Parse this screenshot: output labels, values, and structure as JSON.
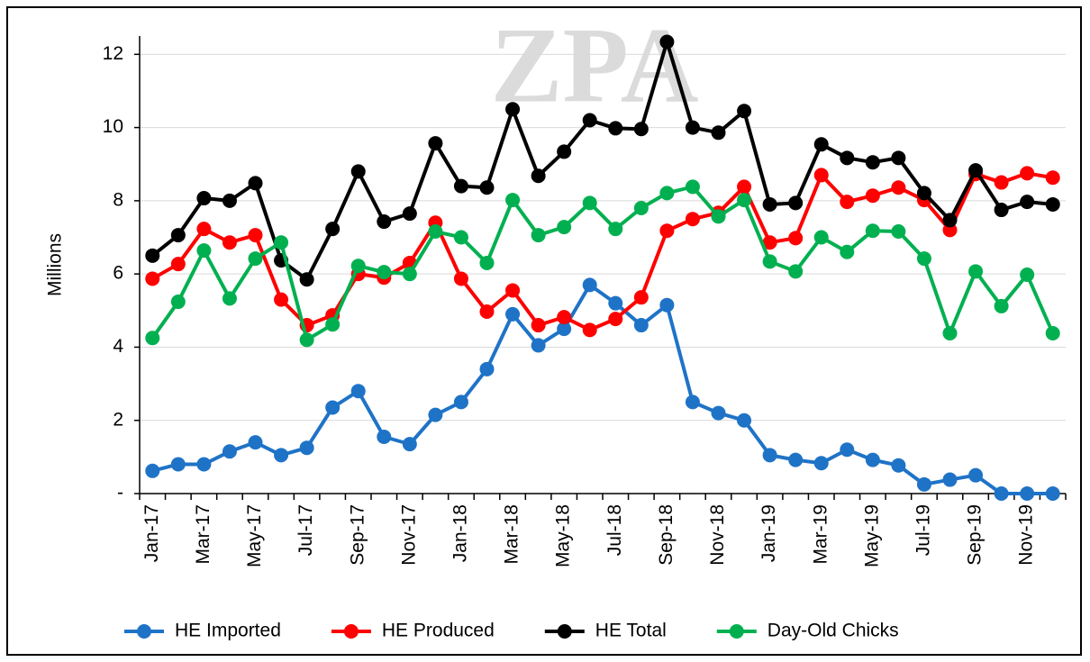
{
  "chart_data": {
    "type": "line",
    "watermark": "ZPA",
    "y_label": "Millions",
    "categories": [
      "Jan-17",
      null,
      "Mar-17",
      null,
      "May-17",
      null,
      "Jul-17",
      null,
      "Sep-17",
      null,
      "Nov-17",
      null,
      "Jan-18",
      null,
      "Mar-18",
      null,
      "May-18",
      null,
      "Jul-18",
      null,
      "Sep-18",
      null,
      "Nov-18",
      null,
      "Jan-19",
      null,
      "Mar-19",
      null,
      "May-19",
      null,
      "Jul-19",
      null,
      "Sep-19",
      null,
      "Nov-19",
      null
    ],
    "ylim": [
      0,
      12.5
    ],
    "yticks": [
      {
        "value": 0,
        "label": "-"
      },
      2,
      4,
      6,
      8,
      10,
      12
    ],
    "grid": true,
    "legend": "bottom",
    "series": [
      {
        "name": "HE Imported",
        "color": "#1f73c7",
        "values": [
          0.62,
          0.8,
          0.8,
          1.15,
          1.4,
          1.05,
          1.25,
          2.35,
          2.8,
          1.55,
          1.35,
          2.15,
          2.5,
          3.4,
          4.9,
          4.05,
          4.5,
          5.7,
          5.2,
          4.6,
          5.15,
          2.5,
          2.2,
          2.0,
          1.05,
          0.92,
          0.83,
          1.2,
          0.92,
          0.77,
          0.25,
          0.38,
          0.5,
          0,
          0,
          0
        ]
      },
      {
        "name": "HE Produced",
        "color": "#ff0000",
        "values": [
          5.87,
          6.27,
          7.23,
          6.86,
          7.06,
          5.3,
          4.6,
          4.87,
          6.0,
          5.9,
          6.3,
          7.4,
          5.87,
          4.97,
          5.55,
          4.6,
          4.82,
          4.47,
          4.77,
          5.36,
          7.18,
          7.5,
          7.67,
          8.38,
          6.86,
          6.98,
          8.7,
          7.97,
          8.14,
          8.36,
          8.02,
          7.2,
          8.73,
          8.5,
          8.75,
          8.63
        ]
      },
      {
        "name": "HE Total",
        "color": "#000000",
        "values": [
          6.5,
          7.06,
          8.07,
          8.0,
          8.48,
          6.37,
          5.85,
          7.23,
          8.8,
          7.43,
          7.65,
          9.57,
          8.4,
          8.36,
          10.5,
          8.68,
          9.34,
          10.2,
          9.98,
          9.96,
          12.34,
          10.0,
          9.86,
          10.45,
          7.9,
          7.94,
          9.54,
          9.17,
          9.05,
          9.17,
          8.21,
          7.47,
          8.83,
          7.75,
          7.97,
          7.9
        ]
      },
      {
        "name": "Day-Old Chicks",
        "color": "#00b050",
        "values": [
          4.25,
          5.24,
          6.64,
          5.33,
          6.42,
          6.86,
          4.2,
          4.62,
          6.22,
          6.05,
          6.0,
          7.16,
          7.0,
          6.3,
          8.02,
          7.06,
          7.28,
          7.94,
          7.23,
          7.8,
          8.21,
          8.38,
          7.57,
          8.02,
          6.34,
          6.07,
          7.0,
          6.6,
          7.18,
          7.16,
          6.42,
          4.38,
          6.07,
          5.12,
          5.98,
          4.38
        ]
      }
    ]
  }
}
